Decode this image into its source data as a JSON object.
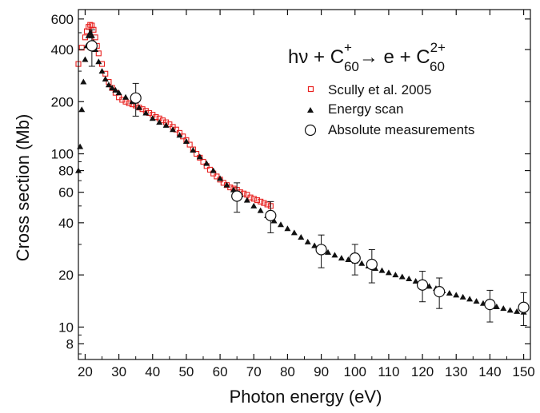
{
  "chart_data": {
    "type": "scatter",
    "xlabel": "Photon energy (eV)",
    "ylabel": "Cross section (Mb)",
    "xlim": [
      18,
      152
    ],
    "ylim": [
      6.5,
      680
    ],
    "y_scale": "log",
    "x_ticks": [
      20,
      30,
      40,
      50,
      60,
      70,
      80,
      90,
      100,
      110,
      120,
      130,
      140,
      150
    ],
    "x_tick_labels": [
      "20",
      "30",
      "40",
      "50",
      "60",
      "70",
      "80",
      "90",
      "100",
      "110",
      "120",
      "130",
      "140",
      "150"
    ],
    "y_ticks": [
      8,
      10,
      20,
      40,
      60,
      80,
      100,
      200,
      400,
      600
    ],
    "y_tick_labels": [
      "8",
      "10",
      "20",
      "40",
      "60",
      "80",
      "100",
      "200",
      "400",
      "600"
    ],
    "grid": false,
    "legend_position": "top-right",
    "annotation": {
      "base": "hν + C",
      "sup1": "+",
      "sub1": "60",
      "arrow": "→",
      "mid": " e + C",
      "sup2": "2+",
      "sub2": "60"
    },
    "series": [
      {
        "name": "Scully et al. 2005",
        "marker": "open-square",
        "color": "#e8201e",
        "x": [
          18,
          19,
          20,
          20.5,
          21,
          21.5,
          22,
          22.5,
          23,
          23.5,
          24,
          25,
          26,
          27,
          28,
          29,
          30,
          31,
          32,
          33,
          34,
          35,
          36,
          37,
          38,
          39,
          40,
          41,
          42,
          43,
          44,
          45,
          46,
          47,
          48,
          49,
          50,
          51,
          52,
          53,
          54,
          55,
          56,
          57,
          58,
          59,
          60,
          61,
          62,
          63,
          64,
          65,
          66,
          67,
          68,
          69,
          70,
          71,
          72,
          73,
          74,
          75
        ],
        "y": [
          330,
          410,
          470,
          510,
          540,
          555,
          550,
          520,
          470,
          420,
          380,
          330,
          290,
          260,
          240,
          225,
          212,
          205,
          200,
          196,
          193,
          190,
          185,
          181,
          177,
          172,
          168,
          163,
          160,
          156,
          152,
          148,
          143,
          138,
          132,
          126,
          120,
          113,
          106,
          100,
          95,
          90,
          85,
          81,
          77,
          74,
          71,
          68,
          66,
          64,
          63,
          62,
          60,
          59,
          58,
          56,
          55,
          54,
          53,
          52,
          51,
          50
        ]
      },
      {
        "name": "Energy scan",
        "marker": "filled-triangle",
        "color": "#111111",
        "x": [
          18,
          18.5,
          19,
          19.5,
          20,
          20.5,
          21,
          21.5,
          22,
          22.5,
          23,
          24,
          25,
          26,
          27,
          28,
          29,
          30,
          32,
          34,
          36,
          38,
          40,
          42,
          44,
          46,
          48,
          50,
          52,
          54,
          56,
          58,
          60,
          62,
          64,
          66,
          68,
          70,
          72,
          74,
          76,
          78,
          80,
          82,
          84,
          86,
          88,
          90,
          92,
          94,
          96,
          98,
          100,
          102,
          104,
          106,
          108,
          110,
          112,
          114,
          116,
          118,
          120,
          122,
          124,
          126,
          128,
          130,
          132,
          134,
          136,
          138,
          140,
          142,
          144,
          146,
          148,
          150
        ],
        "y": [
          80,
          110,
          180,
          260,
          350,
          420,
          480,
          500,
          480,
          440,
          400,
          340,
          300,
          270,
          250,
          240,
          233,
          225,
          212,
          200,
          185,
          172,
          160,
          152,
          146,
          138,
          128,
          118,
          105,
          96,
          88,
          80,
          72,
          66,
          62,
          58,
          54,
          50,
          47,
          44,
          41,
          39,
          37,
          35,
          33,
          31,
          29.5,
          28,
          27,
          26,
          25,
          24.5,
          24,
          23.3,
          22.5,
          21.8,
          21.2,
          20.6,
          20,
          19.5,
          19,
          18.4,
          17.8,
          17.2,
          16.7,
          16.2,
          15.7,
          15.3,
          14.9,
          14.5,
          14.1,
          13.7,
          13.4,
          13.1,
          12.8,
          12.5,
          12.3,
          12.2
        ]
      },
      {
        "name": "Absolute measurements",
        "marker": "open-circle",
        "color": "#111111",
        "x": [
          22,
          35,
          65,
          75,
          90,
          100,
          105,
          120,
          125,
          140,
          150
        ],
        "y": [
          420,
          210,
          57,
          44,
          28,
          25,
          23,
          17.5,
          16,
          13.5,
          13
        ],
        "err": [
          100,
          45,
          11,
          9,
          6,
          5,
          5,
          3.5,
          3.2,
          2.8,
          2.8
        ]
      }
    ]
  }
}
